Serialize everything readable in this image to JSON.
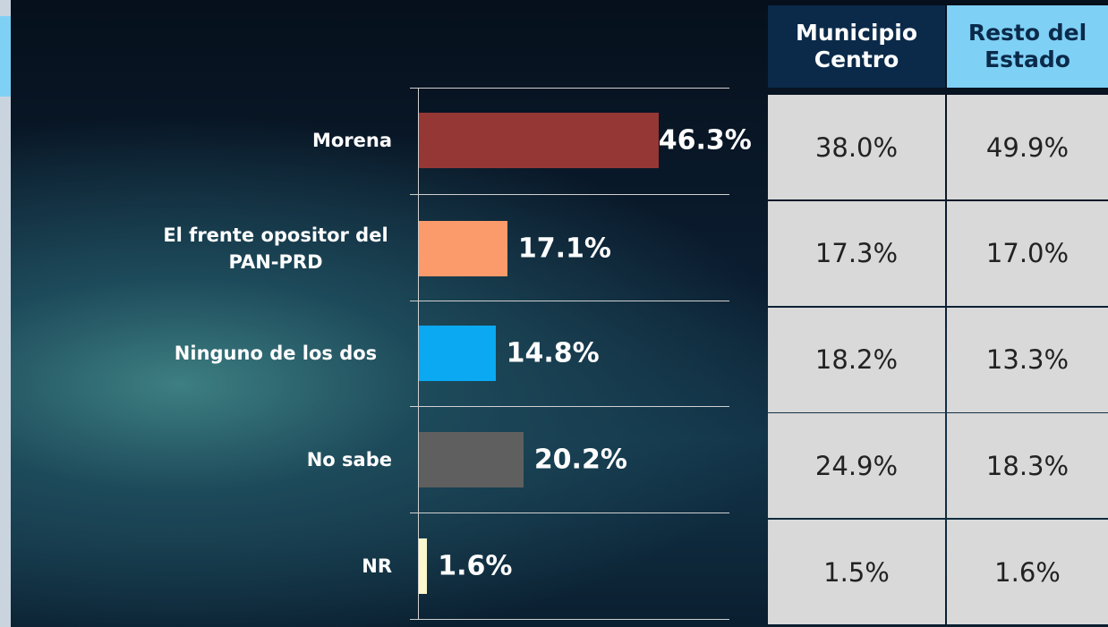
{
  "chart_data": {
    "type": "bar",
    "orientation": "horizontal",
    "categories": [
      "Morena",
      "El frente opositor del PAN-PRD",
      "Ninguno de los dos",
      "No sabe",
      "NR"
    ],
    "values": [
      46.3,
      17.1,
      14.8,
      20.2,
      1.6
    ],
    "value_labels": [
      "46.3%",
      "17.1%",
      "14.8%",
      "20.2%",
      "1.6%"
    ],
    "colors": [
      "#953735",
      "#fb9a6a",
      "#0aa9f2",
      "#5f5f5f",
      "#fcf7cc"
    ],
    "xlim": [
      0,
      60
    ]
  },
  "table": {
    "header": [
      "Municipio Centro",
      "Resto del Estado"
    ],
    "rows": [
      [
        "38.0%",
        "49.9%"
      ],
      [
        "17.3%",
        "17.0%"
      ],
      [
        "18.2%",
        "13.3%"
      ],
      [
        "24.9%",
        "18.3%"
      ],
      [
        "1.5%",
        "1.6%"
      ]
    ]
  }
}
